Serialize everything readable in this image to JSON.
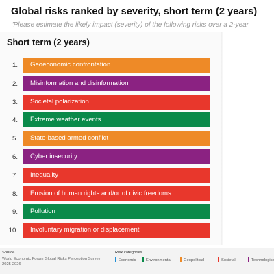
{
  "header": {
    "title": "Global risks ranked by severity, short term (2 years)",
    "subtitle": "\"Please estimate the likely impact (severity) of the following risks over a 2-year a"
  },
  "chart_data": {
    "type": "table",
    "title": "Short term (2 years)",
    "rows": [
      {
        "rank": "1.",
        "label": "Geoeconomic confrontation",
        "category": "Geopolitical"
      },
      {
        "rank": "2.",
        "label": "Misinformation and disinformation",
        "category": "Technological"
      },
      {
        "rank": "3.",
        "label": "Societal polarization",
        "category": "Societal"
      },
      {
        "rank": "4.",
        "label": "Extreme weather events",
        "category": "Environmental"
      },
      {
        "rank": "5.",
        "label": "State-based armed conflict",
        "category": "Geopolitical"
      },
      {
        "rank": "6.",
        "label": "Cyber insecurity",
        "category": "Technological"
      },
      {
        "rank": "7.",
        "label": "Inequality",
        "category": "Societal"
      },
      {
        "rank": "8.",
        "label": "Erosion of human rights and/or of civic freedoms",
        "category": "Societal"
      },
      {
        "rank": "9.",
        "label": "Pollution",
        "category": "Environmental"
      },
      {
        "rank": "10.",
        "label": "Involuntary migration or displacement",
        "category": "Societal"
      }
    ],
    "legend": {
      "title": "Risk categories",
      "placement": "bottom",
      "items": [
        {
          "name": "Economic",
          "color": "#1f8fd6"
        },
        {
          "name": "Environmental",
          "color": "#0a8a4a"
        },
        {
          "name": "Geopolitical",
          "color": "#ee8a27"
        },
        {
          "name": "Societal",
          "color": "#e8372c"
        },
        {
          "name": "Technological",
          "color": "#8b2282"
        }
      ]
    }
  },
  "footer": {
    "source_label": "Source",
    "source_text": "World Economic Forum Global Risks Perception Survey 2025-2026"
  }
}
